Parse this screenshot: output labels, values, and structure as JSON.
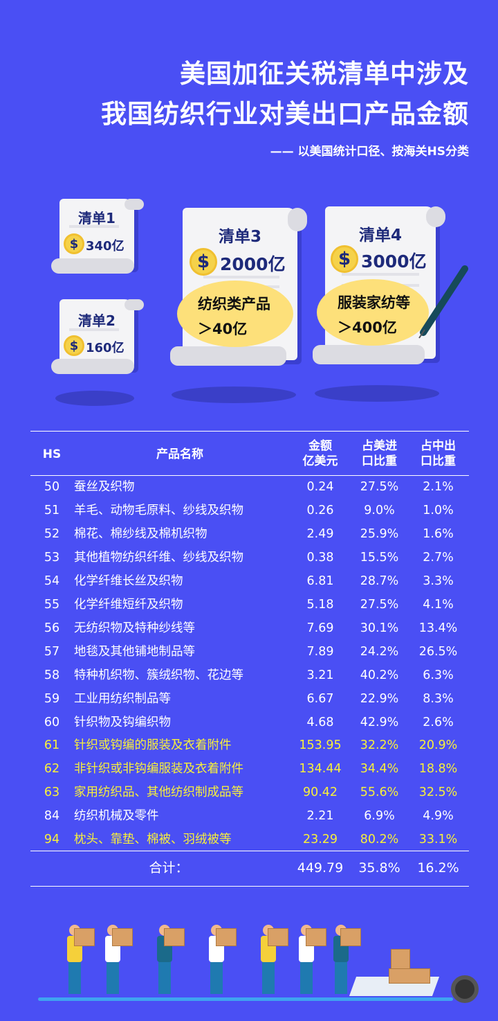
{
  "title": {
    "line1": "美国加征关税清单中涉及",
    "line2": "我国纺织行业对美出口产品金额",
    "subtitle": "—— 以美国统计口径、按海关HS分类"
  },
  "lists": [
    {
      "label": "清单1",
      "amount": "340亿"
    },
    {
      "label": "清单2",
      "amount": "160亿"
    },
    {
      "label": "清单3",
      "amount": "2000亿",
      "note1": "纺织类产品",
      "note2": "＞40亿"
    },
    {
      "label": "清单4",
      "amount": "3000亿",
      "note1": "服装家纺等",
      "note2": "＞400亿"
    }
  ],
  "icons": {
    "coin": "dollar-coin-icon",
    "pen": "pen-icon"
  },
  "colors": {
    "background": "#4a4ff4",
    "highlight": "#f8f03a",
    "coin": "#f5d24a"
  },
  "table": {
    "headers": {
      "hs": "HS",
      "name": "产品名称",
      "amount1": "金额",
      "amount2": "亿美元",
      "us1": "占美进",
      "us2": "口比重",
      "cn1": "占中出",
      "cn2": "口比重"
    },
    "rows": [
      {
        "hs": "50",
        "name": "蚕丝及织物",
        "amount": "0.24",
        "us": "27.5%",
        "cn": "2.1%",
        "hl": false
      },
      {
        "hs": "51",
        "name": "羊毛、动物毛原料、纱线及织物",
        "amount": "0.26",
        "us": "9.0%",
        "cn": "1.0%",
        "hl": false
      },
      {
        "hs": "52",
        "name": "棉花、棉纱线及棉机织物",
        "amount": "2.49",
        "us": "25.9%",
        "cn": "1.6%",
        "hl": false
      },
      {
        "hs": "53",
        "name": "其他植物纺织纤维、纱线及织物",
        "amount": "0.38",
        "us": "15.5%",
        "cn": "2.7%",
        "hl": false
      },
      {
        "hs": "54",
        "name": "化学纤维长丝及织物",
        "amount": "6.81",
        "us": "28.7%",
        "cn": "3.3%",
        "hl": false
      },
      {
        "hs": "55",
        "name": "化学纤维短纤及织物",
        "amount": "5.18",
        "us": "27.5%",
        "cn": "4.1%",
        "hl": false
      },
      {
        "hs": "56",
        "name": "无纺织物及特种纱线等",
        "amount": "7.69",
        "us": "30.1%",
        "cn": "13.4%",
        "hl": false
      },
      {
        "hs": "57",
        "name": "地毯及其他铺地制品等",
        "amount": "7.89",
        "us": "24.2%",
        "cn": "26.5%",
        "hl": false
      },
      {
        "hs": "58",
        "name": "特种机织物、簇绒织物、花边等",
        "amount": "3.21",
        "us": "40.2%",
        "cn": "6.3%",
        "hl": false
      },
      {
        "hs": "59",
        "name": "工业用纺织制品等",
        "amount": "6.67",
        "us": "22.9%",
        "cn": "8.3%",
        "hl": false
      },
      {
        "hs": "60",
        "name": "针织物及钩编织物",
        "amount": "4.68",
        "us": "42.9%",
        "cn": "2.6%",
        "hl": false
      },
      {
        "hs": "61",
        "name": "针织或钩编的服装及衣着附件",
        "amount": "153.95",
        "us": "32.2%",
        "cn": "20.9%",
        "hl": true
      },
      {
        "hs": "62",
        "name": "非针织或非钩编服装及衣着附件",
        "amount": "134.44",
        "us": "34.4%",
        "cn": "18.8%",
        "hl": true
      },
      {
        "hs": "63",
        "name": "家用纺织品、其他纺织制成品等",
        "amount": "90.42",
        "us": "55.6%",
        "cn": "32.5%",
        "hl": true
      },
      {
        "hs": "84",
        "name": "纺织机械及零件",
        "amount": "2.21",
        "us": "6.9%",
        "cn": "4.9%",
        "hl": false
      },
      {
        "hs": "94",
        "name": "枕头、靠垫、棉被、羽绒被等",
        "amount": "23.29",
        "us": "80.2%",
        "cn": "33.1%",
        "hl": true
      }
    ],
    "total": {
      "label": "合计：",
      "amount": "449.79",
      "us": "35.8%",
      "cn": "16.2%"
    }
  }
}
